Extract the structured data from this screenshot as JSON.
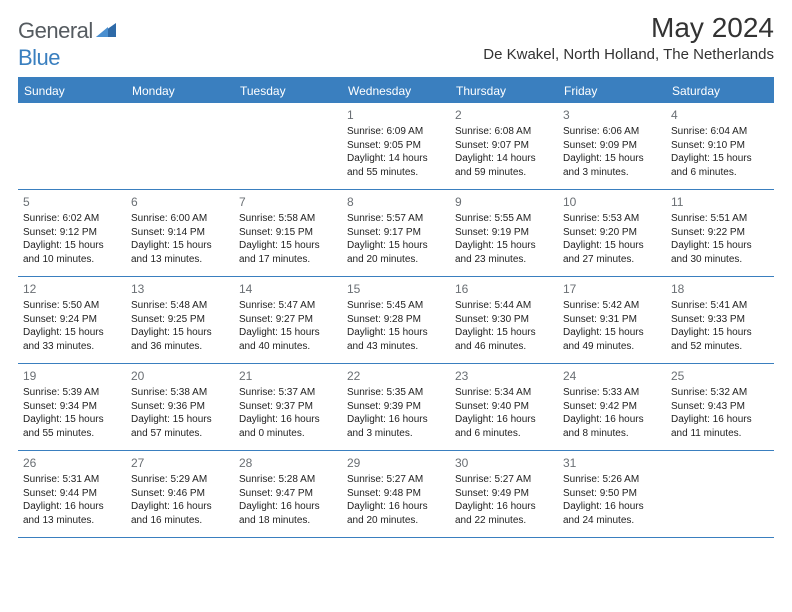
{
  "logo": {
    "text_general": "General",
    "text_blue": "Blue"
  },
  "title": {
    "month": "May 2024",
    "location": "De Kwakel, North Holland, The Netherlands"
  },
  "colors": {
    "accent": "#3a7fbf",
    "header_text": "#ffffff",
    "body_text": "#222222",
    "daynum": "#6a6f74",
    "logo_gray": "#555b60"
  },
  "day_headers": [
    "Sunday",
    "Monday",
    "Tuesday",
    "Wednesday",
    "Thursday",
    "Friday",
    "Saturday"
  ],
  "weeks": [
    [
      null,
      null,
      null,
      {
        "n": "1",
        "sr": "Sunrise: 6:09 AM",
        "ss": "Sunset: 9:05 PM",
        "dl": "Daylight: 14 hours and 55 minutes."
      },
      {
        "n": "2",
        "sr": "Sunrise: 6:08 AM",
        "ss": "Sunset: 9:07 PM",
        "dl": "Daylight: 14 hours and 59 minutes."
      },
      {
        "n": "3",
        "sr": "Sunrise: 6:06 AM",
        "ss": "Sunset: 9:09 PM",
        "dl": "Daylight: 15 hours and 3 minutes."
      },
      {
        "n": "4",
        "sr": "Sunrise: 6:04 AM",
        "ss": "Sunset: 9:10 PM",
        "dl": "Daylight: 15 hours and 6 minutes."
      }
    ],
    [
      {
        "n": "5",
        "sr": "Sunrise: 6:02 AM",
        "ss": "Sunset: 9:12 PM",
        "dl": "Daylight: 15 hours and 10 minutes."
      },
      {
        "n": "6",
        "sr": "Sunrise: 6:00 AM",
        "ss": "Sunset: 9:14 PM",
        "dl": "Daylight: 15 hours and 13 minutes."
      },
      {
        "n": "7",
        "sr": "Sunrise: 5:58 AM",
        "ss": "Sunset: 9:15 PM",
        "dl": "Daylight: 15 hours and 17 minutes."
      },
      {
        "n": "8",
        "sr": "Sunrise: 5:57 AM",
        "ss": "Sunset: 9:17 PM",
        "dl": "Daylight: 15 hours and 20 minutes."
      },
      {
        "n": "9",
        "sr": "Sunrise: 5:55 AM",
        "ss": "Sunset: 9:19 PM",
        "dl": "Daylight: 15 hours and 23 minutes."
      },
      {
        "n": "10",
        "sr": "Sunrise: 5:53 AM",
        "ss": "Sunset: 9:20 PM",
        "dl": "Daylight: 15 hours and 27 minutes."
      },
      {
        "n": "11",
        "sr": "Sunrise: 5:51 AM",
        "ss": "Sunset: 9:22 PM",
        "dl": "Daylight: 15 hours and 30 minutes."
      }
    ],
    [
      {
        "n": "12",
        "sr": "Sunrise: 5:50 AM",
        "ss": "Sunset: 9:24 PM",
        "dl": "Daylight: 15 hours and 33 minutes."
      },
      {
        "n": "13",
        "sr": "Sunrise: 5:48 AM",
        "ss": "Sunset: 9:25 PM",
        "dl": "Daylight: 15 hours and 36 minutes."
      },
      {
        "n": "14",
        "sr": "Sunrise: 5:47 AM",
        "ss": "Sunset: 9:27 PM",
        "dl": "Daylight: 15 hours and 40 minutes."
      },
      {
        "n": "15",
        "sr": "Sunrise: 5:45 AM",
        "ss": "Sunset: 9:28 PM",
        "dl": "Daylight: 15 hours and 43 minutes."
      },
      {
        "n": "16",
        "sr": "Sunrise: 5:44 AM",
        "ss": "Sunset: 9:30 PM",
        "dl": "Daylight: 15 hours and 46 minutes."
      },
      {
        "n": "17",
        "sr": "Sunrise: 5:42 AM",
        "ss": "Sunset: 9:31 PM",
        "dl": "Daylight: 15 hours and 49 minutes."
      },
      {
        "n": "18",
        "sr": "Sunrise: 5:41 AM",
        "ss": "Sunset: 9:33 PM",
        "dl": "Daylight: 15 hours and 52 minutes."
      }
    ],
    [
      {
        "n": "19",
        "sr": "Sunrise: 5:39 AM",
        "ss": "Sunset: 9:34 PM",
        "dl": "Daylight: 15 hours and 55 minutes."
      },
      {
        "n": "20",
        "sr": "Sunrise: 5:38 AM",
        "ss": "Sunset: 9:36 PM",
        "dl": "Daylight: 15 hours and 57 minutes."
      },
      {
        "n": "21",
        "sr": "Sunrise: 5:37 AM",
        "ss": "Sunset: 9:37 PM",
        "dl": "Daylight: 16 hours and 0 minutes."
      },
      {
        "n": "22",
        "sr": "Sunrise: 5:35 AM",
        "ss": "Sunset: 9:39 PM",
        "dl": "Daylight: 16 hours and 3 minutes."
      },
      {
        "n": "23",
        "sr": "Sunrise: 5:34 AM",
        "ss": "Sunset: 9:40 PM",
        "dl": "Daylight: 16 hours and 6 minutes."
      },
      {
        "n": "24",
        "sr": "Sunrise: 5:33 AM",
        "ss": "Sunset: 9:42 PM",
        "dl": "Daylight: 16 hours and 8 minutes."
      },
      {
        "n": "25",
        "sr": "Sunrise: 5:32 AM",
        "ss": "Sunset: 9:43 PM",
        "dl": "Daylight: 16 hours and 11 minutes."
      }
    ],
    [
      {
        "n": "26",
        "sr": "Sunrise: 5:31 AM",
        "ss": "Sunset: 9:44 PM",
        "dl": "Daylight: 16 hours and 13 minutes."
      },
      {
        "n": "27",
        "sr": "Sunrise: 5:29 AM",
        "ss": "Sunset: 9:46 PM",
        "dl": "Daylight: 16 hours and 16 minutes."
      },
      {
        "n": "28",
        "sr": "Sunrise: 5:28 AM",
        "ss": "Sunset: 9:47 PM",
        "dl": "Daylight: 16 hours and 18 minutes."
      },
      {
        "n": "29",
        "sr": "Sunrise: 5:27 AM",
        "ss": "Sunset: 9:48 PM",
        "dl": "Daylight: 16 hours and 20 minutes."
      },
      {
        "n": "30",
        "sr": "Sunrise: 5:27 AM",
        "ss": "Sunset: 9:49 PM",
        "dl": "Daylight: 16 hours and 22 minutes."
      },
      {
        "n": "31",
        "sr": "Sunrise: 5:26 AM",
        "ss": "Sunset: 9:50 PM",
        "dl": "Daylight: 16 hours and 24 minutes."
      },
      null
    ]
  ]
}
